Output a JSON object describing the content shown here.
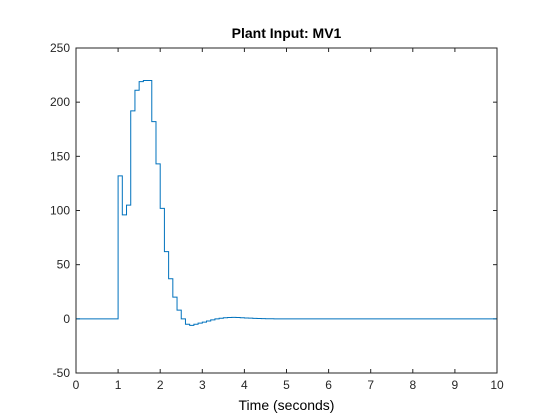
{
  "chart_data": {
    "type": "line",
    "title": "Plant Input:  MV1",
    "xlabel": "Time (seconds)",
    "ylabel": "",
    "xlim": [
      0,
      10
    ],
    "ylim": [
      -50,
      250
    ],
    "xticks": [
      0,
      1,
      2,
      3,
      4,
      5,
      6,
      7,
      8,
      9,
      10
    ],
    "yticks": [
      -50,
      0,
      50,
      100,
      150,
      200,
      250
    ],
    "grid": false,
    "line_color": "#0072bd",
    "axis_color": "#262626",
    "series": [
      {
        "step": true,
        "x": [
          0,
          0.1,
          0.2,
          0.3,
          0.4,
          0.5,
          0.6,
          0.7,
          0.8,
          0.9,
          1.0,
          1.1,
          1.2,
          1.3,
          1.4,
          1.5,
          1.6,
          1.7,
          1.8,
          1.9,
          2.0,
          2.1,
          2.2,
          2.3,
          2.4,
          2.5,
          2.6,
          2.7,
          2.8,
          2.9,
          3.0,
          3.1,
          3.2,
          3.3,
          3.4,
          3.5,
          3.6,
          3.7,
          3.8,
          3.9,
          4.0,
          4.1,
          4.2,
          4.3,
          4.4,
          4.5,
          4.6,
          4.7,
          4.8,
          4.9,
          5.0,
          5.5,
          6.0,
          7.0,
          8.0,
          9.0,
          10.0
        ],
        "y": [
          0,
          0,
          0,
          0,
          0,
          0,
          0,
          0,
          0,
          0,
          132,
          96,
          105,
          192,
          211,
          219,
          220,
          220,
          182,
          143,
          102,
          62,
          37,
          20,
          8,
          0,
          -5,
          -6,
          -5,
          -4,
          -3,
          -2,
          -1,
          0,
          0.5,
          1,
          1.2,
          1.3,
          1.2,
          1,
          0.8,
          0.6,
          0.4,
          0.3,
          0.2,
          0.1,
          0.1,
          0,
          0,
          0,
          0,
          0,
          0,
          0,
          0,
          0,
          0
        ]
      }
    ]
  }
}
